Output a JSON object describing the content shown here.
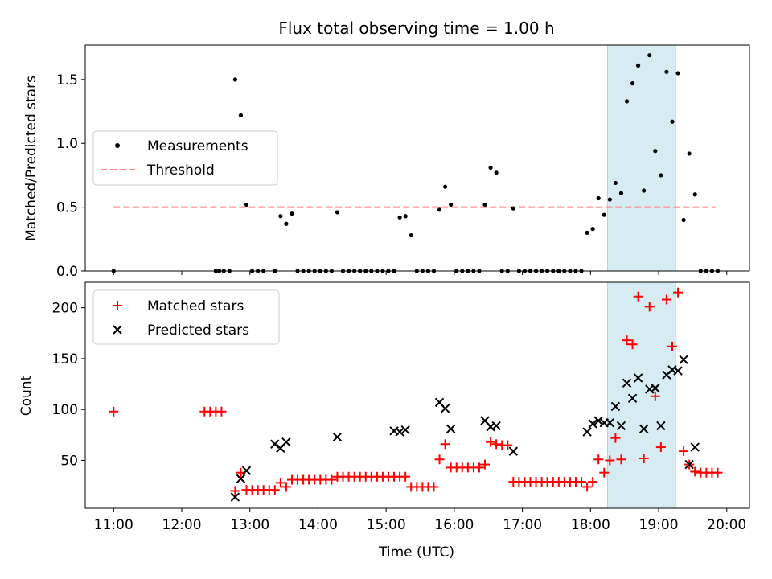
{
  "figure": {
    "title": "Flux total observing time = 1.00 h",
    "xlabel": "Time (UTC)",
    "x_ticks": [
      "11:00",
      "12:00",
      "13:00",
      "14:00",
      "15:00",
      "16:00",
      "17:00",
      "18:00",
      "19:00",
      "20:00"
    ],
    "highlight": {
      "start": "18:15",
      "end": "19:15",
      "color": "#add8e6"
    }
  },
  "chart_data": [
    {
      "type": "scatter",
      "title": "Flux total observing time = 1.00 h",
      "ylabel": "Matched/Predicted stars",
      "xlabel": "",
      "xlim": [
        "10:35",
        "20:20"
      ],
      "ylim": [
        0,
        1.77
      ],
      "y_ticks": [
        "0.0",
        "0.5",
        "1.0",
        "1.5"
      ],
      "legend": {
        "position": "center-left",
        "entries": [
          "Measurements",
          "Threshold"
        ]
      },
      "grid": false,
      "threshold": {
        "name": "Threshold",
        "value": 0.5,
        "x_range": [
          "11:00",
          "19:50"
        ],
        "color": "#ff7f7f",
        "style": "dashed"
      },
      "series": [
        {
          "name": "Measurements",
          "marker": "dot",
          "color": "#000000",
          "points": [
            [
              "11:00",
              0.0
            ],
            [
              "12:30",
              0.0
            ],
            [
              "12:33",
              0.0
            ],
            [
              "12:37",
              0.0
            ],
            [
              "12:42",
              0.0
            ],
            [
              "12:47",
              1.5
            ],
            [
              "12:52",
              1.22
            ],
            [
              "12:57",
              0.52
            ],
            [
              "13:02",
              0.0
            ],
            [
              "13:07",
              0.0
            ],
            [
              "13:12",
              0.0
            ],
            [
              "13:22",
              0.0
            ],
            [
              "13:27",
              0.43
            ],
            [
              "13:32",
              0.37
            ],
            [
              "13:37",
              0.45
            ],
            [
              "13:42",
              0.0
            ],
            [
              "13:47",
              0.0
            ],
            [
              "13:52",
              0.0
            ],
            [
              "13:57",
              0.0
            ],
            [
              "14:02",
              0.0
            ],
            [
              "14:07",
              0.0
            ],
            [
              "14:12",
              0.0
            ],
            [
              "14:17",
              0.46
            ],
            [
              "14:22",
              0.0
            ],
            [
              "14:27",
              0.0
            ],
            [
              "14:32",
              0.0
            ],
            [
              "14:37",
              0.0
            ],
            [
              "14:42",
              0.0
            ],
            [
              "14:47",
              0.0
            ],
            [
              "14:52",
              0.0
            ],
            [
              "14:57",
              0.0
            ],
            [
              "15:02",
              0.0
            ],
            [
              "15:07",
              0.0
            ],
            [
              "15:12",
              0.42
            ],
            [
              "15:17",
              0.43
            ],
            [
              "15:22",
              0.28
            ],
            [
              "15:27",
              0.0
            ],
            [
              "15:32",
              0.0
            ],
            [
              "15:37",
              0.0
            ],
            [
              "15:42",
              0.0
            ],
            [
              "15:47",
              0.48
            ],
            [
              "15:52",
              0.66
            ],
            [
              "15:57",
              0.52
            ],
            [
              "16:02",
              0.0
            ],
            [
              "16:07",
              0.0
            ],
            [
              "16:12",
              0.0
            ],
            [
              "16:17",
              0.0
            ],
            [
              "16:22",
              0.0
            ],
            [
              "16:27",
              0.52
            ],
            [
              "16:32",
              0.81
            ],
            [
              "16:37",
              0.77
            ],
            [
              "16:42",
              0.0
            ],
            [
              "16:47",
              0.0
            ],
            [
              "16:52",
              0.49
            ],
            [
              "16:57",
              0.0
            ],
            [
              "17:02",
              0.0
            ],
            [
              "17:07",
              0.0
            ],
            [
              "17:12",
              0.0
            ],
            [
              "17:17",
              0.0
            ],
            [
              "17:22",
              0.0
            ],
            [
              "17:27",
              0.0
            ],
            [
              "17:32",
              0.0
            ],
            [
              "17:37",
              0.0
            ],
            [
              "17:42",
              0.0
            ],
            [
              "17:47",
              0.0
            ],
            [
              "17:52",
              0.0
            ],
            [
              "17:57",
              0.3
            ],
            [
              "18:02",
              0.33
            ],
            [
              "18:07",
              0.57
            ],
            [
              "18:12",
              0.44
            ],
            [
              "18:17",
              0.56
            ],
            [
              "18:22",
              0.69
            ],
            [
              "18:27",
              0.61
            ],
            [
              "18:32",
              1.33
            ],
            [
              "18:37",
              1.47
            ],
            [
              "18:42",
              1.61
            ],
            [
              "18:47",
              0.63
            ],
            [
              "18:52",
              1.69
            ],
            [
              "18:57",
              0.94
            ],
            [
              "19:02",
              0.75
            ],
            [
              "19:07",
              1.56
            ],
            [
              "19:12",
              1.17
            ],
            [
              "19:17",
              1.55
            ],
            [
              "19:22",
              0.4
            ],
            [
              "19:27",
              0.92
            ],
            [
              "19:32",
              0.6
            ],
            [
              "19:37",
              0.0
            ],
            [
              "19:42",
              0.0
            ],
            [
              "19:47",
              0.0
            ],
            [
              "19:52",
              0.0
            ]
          ]
        }
      ]
    },
    {
      "type": "scatter",
      "title": "",
      "ylabel": "Count",
      "xlabel": "Time (UTC)",
      "xlim": [
        "10:35",
        "20:20"
      ],
      "ylim": [
        3,
        225
      ],
      "y_ticks": [
        "50",
        "100",
        "150",
        "200"
      ],
      "legend": {
        "position": "top-left",
        "entries": [
          "Matched stars",
          "Predicted stars"
        ]
      },
      "grid": false,
      "series": [
        {
          "name": "Matched stars",
          "marker": "plus",
          "color": "#ff0000",
          "points": [
            [
              "11:00",
              98
            ],
            [
              "12:20",
              98
            ],
            [
              "12:25",
              98
            ],
            [
              "12:30",
              98
            ],
            [
              "12:35",
              98
            ],
            [
              "12:47",
              20
            ],
            [
              "12:52",
              38
            ],
            [
              "12:57",
              21
            ],
            [
              "13:02",
              21
            ],
            [
              "13:07",
              21
            ],
            [
              "13:12",
              21
            ],
            [
              "13:17",
              21
            ],
            [
              "13:22",
              21
            ],
            [
              "13:27",
              28
            ],
            [
              "13:32",
              24
            ],
            [
              "13:37",
              31
            ],
            [
              "13:42",
              31
            ],
            [
              "13:47",
              31
            ],
            [
              "13:52",
              31
            ],
            [
              "13:57",
              31
            ],
            [
              "14:02",
              31
            ],
            [
              "14:07",
              31
            ],
            [
              "14:12",
              31
            ],
            [
              "14:17",
              34
            ],
            [
              "14:22",
              34
            ],
            [
              "14:27",
              34
            ],
            [
              "14:32",
              34
            ],
            [
              "14:37",
              34
            ],
            [
              "14:42",
              34
            ],
            [
              "14:47",
              34
            ],
            [
              "14:52",
              34
            ],
            [
              "14:57",
              34
            ],
            [
              "15:02",
              34
            ],
            [
              "15:07",
              34
            ],
            [
              "15:12",
              34
            ],
            [
              "15:17",
              34
            ],
            [
              "15:22",
              24
            ],
            [
              "15:27",
              24
            ],
            [
              "15:32",
              24
            ],
            [
              "15:37",
              24
            ],
            [
              "15:42",
              24
            ],
            [
              "15:47",
              51
            ],
            [
              "15:52",
              66
            ],
            [
              "15:57",
              43
            ],
            [
              "16:02",
              43
            ],
            [
              "16:07",
              43
            ],
            [
              "16:12",
              43
            ],
            [
              "16:17",
              43
            ],
            [
              "16:22",
              43
            ],
            [
              "16:27",
              46
            ],
            [
              "16:32",
              68
            ],
            [
              "16:37",
              66
            ],
            [
              "16:42",
              65
            ],
            [
              "16:47",
              65
            ],
            [
              "16:52",
              29
            ],
            [
              "16:57",
              29
            ],
            [
              "17:02",
              29
            ],
            [
              "17:07",
              29
            ],
            [
              "17:12",
              29
            ],
            [
              "17:17",
              29
            ],
            [
              "17:22",
              29
            ],
            [
              "17:27",
              29
            ],
            [
              "17:32",
              29
            ],
            [
              "17:37",
              29
            ],
            [
              "17:42",
              29
            ],
            [
              "17:47",
              29
            ],
            [
              "17:52",
              29
            ],
            [
              "17:57",
              24
            ],
            [
              "18:02",
              29
            ],
            [
              "18:07",
              51
            ],
            [
              "18:12",
              38
            ],
            [
              "18:17",
              50
            ],
            [
              "18:22",
              72
            ],
            [
              "18:27",
              51
            ],
            [
              "18:32",
              168
            ],
            [
              "18:37",
              164
            ],
            [
              "18:42",
              211
            ],
            [
              "18:47",
              52
            ],
            [
              "18:52",
              201
            ],
            [
              "18:57",
              113
            ],
            [
              "19:02",
              63
            ],
            [
              "19:07",
              208
            ],
            [
              "19:12",
              162
            ],
            [
              "19:17",
              215
            ],
            [
              "19:22",
              59
            ],
            [
              "19:27",
              46
            ],
            [
              "19:32",
              39
            ],
            [
              "19:37",
              38
            ],
            [
              "19:42",
              38
            ],
            [
              "19:47",
              38
            ],
            [
              "19:52",
              38
            ]
          ]
        },
        {
          "name": "Predicted stars",
          "marker": "x",
          "color": "#000000",
          "points": [
            [
              "12:47",
              14
            ],
            [
              "12:52",
              32
            ],
            [
              "12:57",
              40
            ],
            [
              "13:22",
              66
            ],
            [
              "13:27",
              62
            ],
            [
              "13:32",
              68
            ],
            [
              "14:17",
              73
            ],
            [
              "15:07",
              79
            ],
            [
              "15:12",
              78
            ],
            [
              "15:17",
              80
            ],
            [
              "15:47",
              107
            ],
            [
              "15:52",
              101
            ],
            [
              "15:57",
              81
            ],
            [
              "16:27",
              89
            ],
            [
              "16:32",
              83
            ],
            [
              "16:37",
              84
            ],
            [
              "16:52",
              59
            ],
            [
              "17:57",
              78
            ],
            [
              "18:02",
              86
            ],
            [
              "18:07",
              89
            ],
            [
              "18:12",
              87
            ],
            [
              "18:17",
              87
            ],
            [
              "18:22",
              103
            ],
            [
              "18:27",
              84
            ],
            [
              "18:32",
              126
            ],
            [
              "18:37",
              111
            ],
            [
              "18:42",
              131
            ],
            [
              "18:47",
              81
            ],
            [
              "18:52",
              120
            ],
            [
              "18:57",
              121
            ],
            [
              "19:02",
              84
            ],
            [
              "19:07",
              134
            ],
            [
              "19:12",
              139
            ],
            [
              "19:17",
              138
            ],
            [
              "19:22",
              149
            ],
            [
              "19:27",
              46
            ],
            [
              "19:32",
              63
            ]
          ]
        }
      ]
    }
  ]
}
